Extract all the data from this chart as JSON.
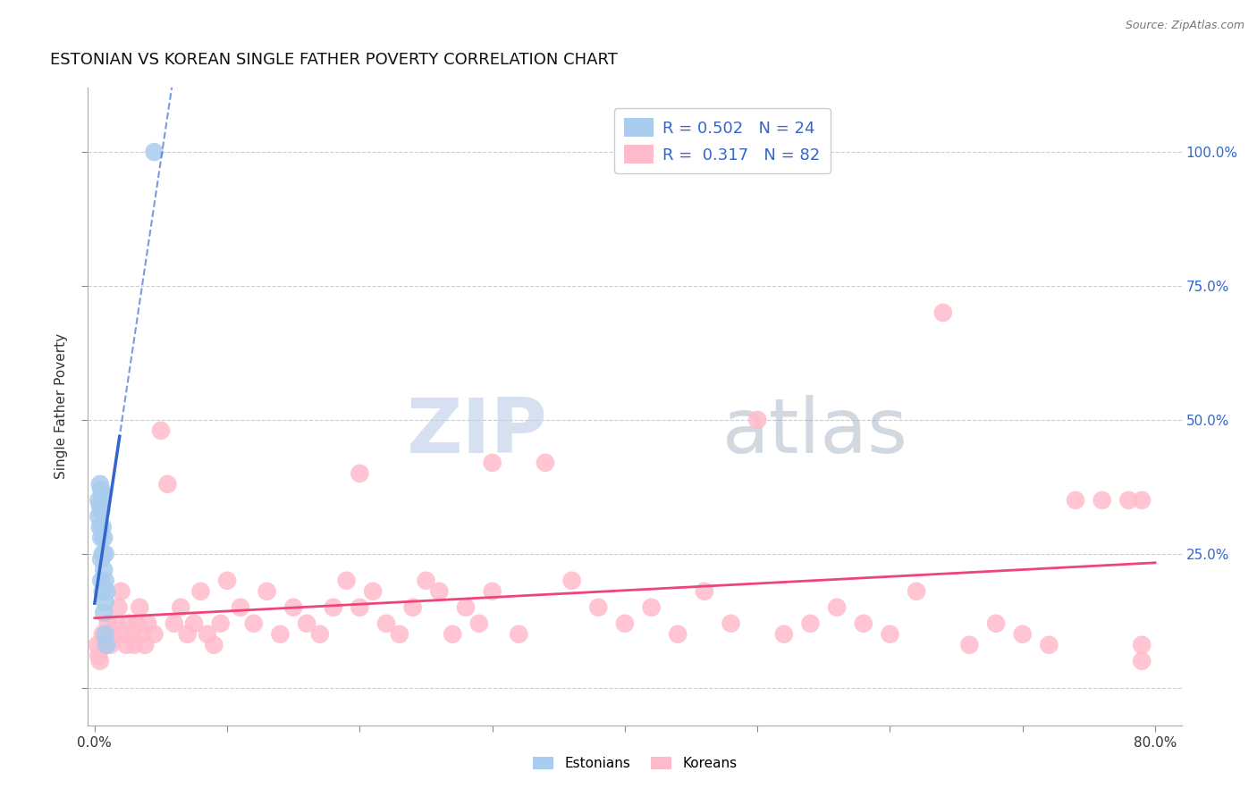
{
  "title": "ESTONIAN VS KOREAN SINGLE FATHER POVERTY CORRELATION CHART",
  "source": "Source: ZipAtlas.com",
  "ylabel": "Single Father Poverty",
  "R_estonian": 0.502,
  "N_estonian": 24,
  "R_korean": 0.317,
  "N_korean": 82,
  "estonian_color": "#AACCEE",
  "korean_color": "#FFBBCC",
  "estonian_line_color": "#3366CC",
  "korean_line_color": "#EE4477",
  "legend_text_color": "#3366CC",
  "right_label_color": "#3366CC",
  "xlim": [
    -0.005,
    0.82
  ],
  "ylim": [
    -0.07,
    1.12
  ],
  "ytick_vals": [
    0.0,
    0.25,
    0.5,
    0.75,
    1.0
  ],
  "ytick_labels": [
    "",
    "25.0%",
    "50.0%",
    "75.0%",
    "100.0%"
  ],
  "xtick_vals": [
    0.0,
    0.1,
    0.2,
    0.3,
    0.4,
    0.5,
    0.6,
    0.7,
    0.8
  ],
  "xtick_labels": [
    "0.0%",
    "",
    "",
    "",
    "",
    "",
    "",
    "",
    "80.0%"
  ],
  "grid_color": "#CCCCCC",
  "estonian_x": [
    0.003,
    0.003,
    0.004,
    0.004,
    0.004,
    0.005,
    0.005,
    0.005,
    0.005,
    0.005,
    0.006,
    0.006,
    0.006,
    0.006,
    0.007,
    0.007,
    0.007,
    0.008,
    0.008,
    0.008,
    0.008,
    0.009,
    0.009,
    0.045
  ],
  "estonian_y": [
    0.35,
    0.32,
    0.38,
    0.34,
    0.3,
    0.37,
    0.33,
    0.28,
    0.24,
    0.2,
    0.36,
    0.3,
    0.25,
    0.18,
    0.28,
    0.22,
    0.14,
    0.25,
    0.2,
    0.16,
    0.1,
    0.18,
    0.08,
    1.0
  ],
  "korean_x": [
    0.002,
    0.003,
    0.004,
    0.006,
    0.008,
    0.01,
    0.012,
    0.014,
    0.016,
    0.018,
    0.02,
    0.022,
    0.024,
    0.026,
    0.028,
    0.03,
    0.032,
    0.034,
    0.036,
    0.038,
    0.04,
    0.045,
    0.05,
    0.055,
    0.06,
    0.065,
    0.07,
    0.075,
    0.08,
    0.085,
    0.09,
    0.095,
    0.1,
    0.11,
    0.12,
    0.13,
    0.14,
    0.15,
    0.16,
    0.17,
    0.18,
    0.19,
    0.2,
    0.21,
    0.22,
    0.23,
    0.24,
    0.25,
    0.26,
    0.27,
    0.28,
    0.29,
    0.3,
    0.32,
    0.34,
    0.36,
    0.38,
    0.4,
    0.42,
    0.44,
    0.46,
    0.48,
    0.5,
    0.52,
    0.54,
    0.56,
    0.58,
    0.6,
    0.62,
    0.64,
    0.66,
    0.68,
    0.7,
    0.72,
    0.74,
    0.76,
    0.78,
    0.79,
    0.79,
    0.79,
    0.3,
    0.2
  ],
  "korean_y": [
    0.08,
    0.06,
    0.05,
    0.1,
    0.08,
    0.12,
    0.08,
    0.1,
    0.12,
    0.15,
    0.18,
    0.1,
    0.08,
    0.12,
    0.1,
    0.08,
    0.12,
    0.15,
    0.1,
    0.08,
    0.12,
    0.1,
    0.48,
    0.38,
    0.12,
    0.15,
    0.1,
    0.12,
    0.18,
    0.1,
    0.08,
    0.12,
    0.2,
    0.15,
    0.12,
    0.18,
    0.1,
    0.15,
    0.12,
    0.1,
    0.15,
    0.2,
    0.15,
    0.18,
    0.12,
    0.1,
    0.15,
    0.2,
    0.18,
    0.1,
    0.15,
    0.12,
    0.18,
    0.1,
    0.42,
    0.2,
    0.15,
    0.12,
    0.15,
    0.1,
    0.18,
    0.12,
    0.5,
    0.1,
    0.12,
    0.15,
    0.12,
    0.1,
    0.18,
    0.7,
    0.08,
    0.12,
    0.1,
    0.08,
    0.35,
    0.35,
    0.35,
    0.35,
    0.05,
    0.08,
    0.42,
    0.4
  ],
  "watermark_zip_color": "#BBCCE8",
  "watermark_atlas_color": "#99AABB"
}
